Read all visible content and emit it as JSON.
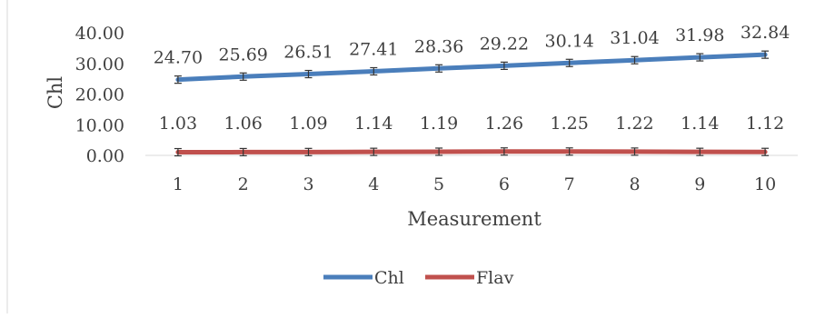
{
  "chart_data": {
    "type": "line",
    "categories": [
      "1",
      "2",
      "3",
      "4",
      "5",
      "6",
      "7",
      "8",
      "9",
      "10"
    ],
    "xlabel": "Measurement",
    "ylabel": "Chl",
    "ylim": [
      0,
      40
    ],
    "yticks": [
      "0.00",
      "10.00",
      "20.00",
      "30.00",
      "40.00"
    ],
    "grid": false,
    "legend_position": "bottom",
    "series": [
      {
        "name": "Chl",
        "color": "#4a7ebb",
        "values": [
          24.7,
          25.69,
          26.51,
          27.41,
          28.36,
          29.22,
          30.14,
          31.04,
          31.98,
          32.84
        ],
        "labels": [
          "24.70",
          "25.69",
          "26.51",
          "27.41",
          "28.36",
          "29.22",
          "30.14",
          "31.04",
          "31.98",
          "32.84"
        ]
      },
      {
        "name": "Flav",
        "color": "#c0504d",
        "values": [
          1.03,
          1.06,
          1.09,
          1.14,
          1.19,
          1.26,
          1.25,
          1.22,
          1.14,
          1.12
        ],
        "labels": [
          "1.03",
          "1.06",
          "1.09",
          "1.14",
          "1.19",
          "1.26",
          "1.25",
          "1.22",
          "1.14",
          "1.12"
        ]
      }
    ]
  }
}
